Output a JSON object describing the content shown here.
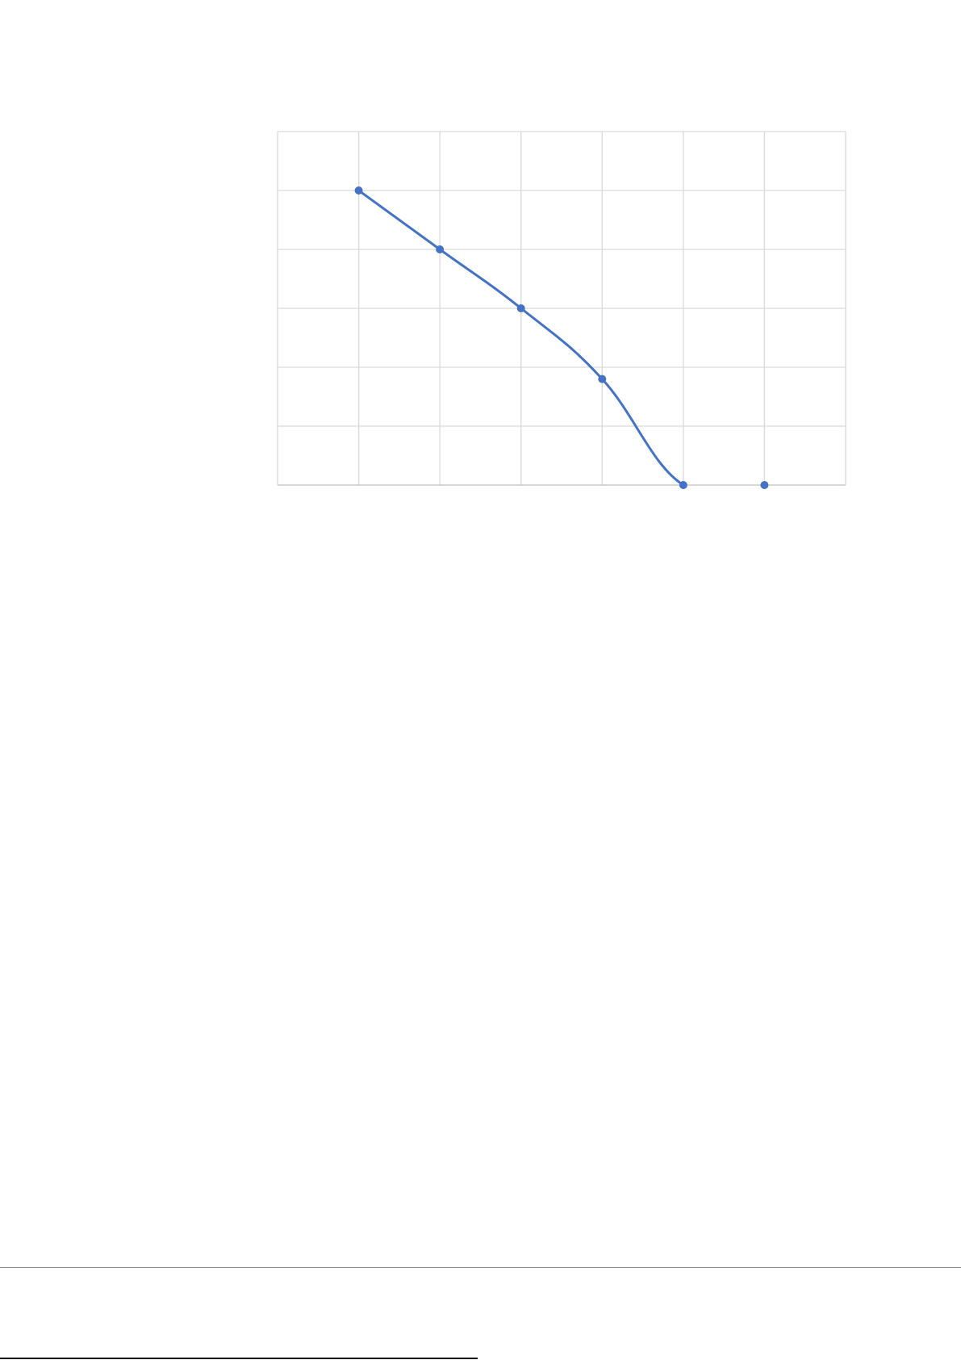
{
  "chart_data": {
    "type": "line",
    "smooth": true,
    "markers": true,
    "title": "",
    "xlabel": "",
    "ylabel": "",
    "xlim": [
      0,
      7
    ],
    "ylim": [
      0,
      6
    ],
    "grid": true,
    "x": [
      1,
      2,
      3,
      4,
      5,
      6
    ],
    "series": [
      {
        "values": [
          5,
          4,
          3,
          1.8,
          0,
          0
        ],
        "color": "#4472C4"
      }
    ],
    "grid_color": "#D9D9D9"
  }
}
